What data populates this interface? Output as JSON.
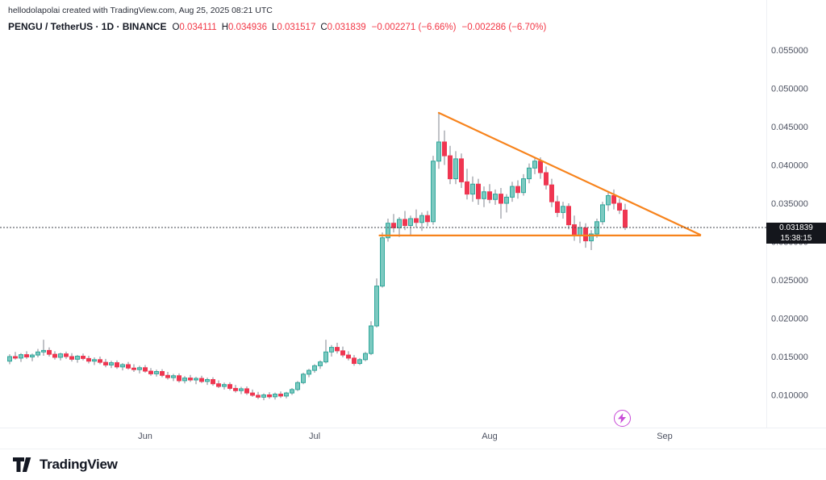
{
  "attribution": "hellodolapolai created with TradingView.com, Aug 25, 2025 08:21 UTC",
  "header": {
    "title": "PENGU / TetherUS · 1D · BINANCE",
    "ohlc": {
      "o_label": "O",
      "o_value": "0.034111",
      "h_label": "H",
      "h_value": "0.034936",
      "l_label": "L",
      "l_value": "0.031517",
      "c_label": "C",
      "c_value": "0.031839"
    },
    "change1": "−0.002271 (−6.66%)",
    "change2": "−0.002286 (−6.70%)"
  },
  "price_scale": {
    "price_label": "0.031839",
    "countdown": "15:38:15"
  },
  "marker": {
    "name": "lightning",
    "color": "#c84bd8"
  },
  "footer": {
    "brand": "TradingView"
  },
  "chart_data": {
    "type": "candlestick",
    "title": "PENGU / TetherUS 1D BINANCE",
    "interval": "1D",
    "current_price": 0.031839,
    "colors": {
      "up": "#7cc9c0",
      "up_border": "#2fa79b",
      "down": "#ef3651",
      "wick": "#82858f",
      "trendline": "#f7831c",
      "price_line": "#42464e"
    },
    "y_axis": {
      "min": 0.01,
      "max": 0.055,
      "labels": [
        "0.055000",
        "0.050000",
        "0.045000",
        "0.040000",
        "0.035000",
        "0.030000",
        "0.025000",
        "0.020000",
        "0.015000",
        "0.010000"
      ]
    },
    "x_axis": {
      "ticks": [
        {
          "label": "Jun",
          "index": 24
        },
        {
          "label": "Jul",
          "index": 54
        },
        {
          "label": "Aug",
          "index": 85
        },
        {
          "label": "Sep",
          "index": 116
        }
      ]
    },
    "drawings": [
      {
        "type": "trendline",
        "x1_index": 76,
        "price1": 0.0468,
        "x2_index": 122.3,
        "price2": 0.0309
      },
      {
        "type": "trendline",
        "x1_index": 65.5,
        "price1": 0.0308,
        "x2_index": 122.3,
        "price2": 0.0308
      }
    ],
    "candles": [
      [
        0.0144,
        0.0153,
        0.014,
        0.015
      ],
      [
        0.015,
        0.0156,
        0.0146,
        0.0148
      ],
      [
        0.0148,
        0.01545,
        0.0143,
        0.01525
      ],
      [
        0.01525,
        0.0157,
        0.0147,
        0.01495
      ],
      [
        0.01495,
        0.0154,
        0.0144,
        0.0152
      ],
      [
        0.0152,
        0.016,
        0.0149,
        0.0156
      ],
      [
        0.0156,
        0.0172,
        0.0151,
        0.0158
      ],
      [
        0.0158,
        0.0162,
        0.015,
        0.0153
      ],
      [
        0.0153,
        0.0157,
        0.0146,
        0.0149
      ],
      [
        0.0149,
        0.0155,
        0.0145,
        0.01535
      ],
      [
        0.01535,
        0.01565,
        0.0147,
        0.015
      ],
      [
        0.015,
        0.01545,
        0.01435,
        0.01465
      ],
      [
        0.01465,
        0.0152,
        0.0142,
        0.01505
      ],
      [
        0.01505,
        0.0154,
        0.0145,
        0.01475
      ],
      [
        0.01475,
        0.0151,
        0.0141,
        0.0144
      ],
      [
        0.0144,
        0.0149,
        0.0139,
        0.0146
      ],
      [
        0.0146,
        0.015,
        0.014,
        0.01425
      ],
      [
        0.01425,
        0.0147,
        0.0136,
        0.0139
      ],
      [
        0.0139,
        0.01445,
        0.0135,
        0.0142
      ],
      [
        0.0142,
        0.0145,
        0.0134,
        0.01365
      ],
      [
        0.01365,
        0.01415,
        0.0132,
        0.01395
      ],
      [
        0.01395,
        0.0143,
        0.0133,
        0.0135
      ],
      [
        0.0135,
        0.014,
        0.013,
        0.0133
      ],
      [
        0.0133,
        0.0138,
        0.0128,
        0.01355
      ],
      [
        0.01355,
        0.0139,
        0.0129,
        0.0131
      ],
      [
        0.0131,
        0.0135,
        0.0125,
        0.01275
      ],
      [
        0.01275,
        0.0133,
        0.0124,
        0.01305
      ],
      [
        0.01305,
        0.01335,
        0.0123,
        0.01255
      ],
      [
        0.01255,
        0.013,
        0.012,
        0.01225
      ],
      [
        0.01225,
        0.01275,
        0.0118,
        0.0125
      ],
      [
        0.0125,
        0.0128,
        0.0116,
        0.01185
      ],
      [
        0.01185,
        0.01245,
        0.0115,
        0.0122
      ],
      [
        0.0122,
        0.0126,
        0.0117,
        0.01195
      ],
      [
        0.01195,
        0.01235,
        0.0114,
        0.01215
      ],
      [
        0.01215,
        0.0125,
        0.01155,
        0.01175
      ],
      [
        0.01175,
        0.01225,
        0.0113,
        0.012
      ],
      [
        0.012,
        0.0123,
        0.0112,
        0.01145
      ],
      [
        0.01145,
        0.0119,
        0.0109,
        0.0111
      ],
      [
        0.0111,
        0.0116,
        0.0107,
        0.01135
      ],
      [
        0.01135,
        0.01165,
        0.0106,
        0.01085
      ],
      [
        0.01085,
        0.0113,
        0.0103,
        0.01055
      ],
      [
        0.01055,
        0.01105,
        0.0101,
        0.0108
      ],
      [
        0.0108,
        0.0111,
        0.01,
        0.01025
      ],
      [
        0.01025,
        0.0107,
        0.00975,
        0.00995
      ],
      [
        0.00995,
        0.0104,
        0.00945,
        0.0097
      ],
      [
        0.0097,
        0.0102,
        0.0093,
        0.01
      ],
      [
        0.01,
        0.01035,
        0.0095,
        0.00975
      ],
      [
        0.00975,
        0.0103,
        0.0094,
        0.0101
      ],
      [
        0.0101,
        0.01045,
        0.0096,
        0.00985
      ],
      [
        0.00985,
        0.0104,
        0.00955,
        0.01025
      ],
      [
        0.01025,
        0.0109,
        0.01,
        0.0107
      ],
      [
        0.0107,
        0.0118,
        0.0105,
        0.0116
      ],
      [
        0.0116,
        0.0129,
        0.0114,
        0.0127
      ],
      [
        0.0127,
        0.0134,
        0.0123,
        0.0132
      ],
      [
        0.0132,
        0.014,
        0.0129,
        0.0138
      ],
      [
        0.0138,
        0.0145,
        0.0134,
        0.0143
      ],
      [
        0.0143,
        0.0172,
        0.0141,
        0.0156
      ],
      [
        0.0156,
        0.0165,
        0.015,
        0.0162
      ],
      [
        0.0162,
        0.0168,
        0.0154,
        0.01575
      ],
      [
        0.01575,
        0.0163,
        0.0149,
        0.0152
      ],
      [
        0.0152,
        0.0157,
        0.0145,
        0.0148
      ],
      [
        0.0148,
        0.0152,
        0.0138,
        0.0141
      ],
      [
        0.0141,
        0.0148,
        0.0139,
        0.0146
      ],
      [
        0.0146,
        0.0156,
        0.0144,
        0.0154
      ],
      [
        0.0154,
        0.0196,
        0.0152,
        0.019
      ],
      [
        0.019,
        0.0252,
        0.0188,
        0.0242
      ],
      [
        0.0242,
        0.0312,
        0.024,
        0.0305
      ],
      [
        0.0305,
        0.033,
        0.03,
        0.0324
      ],
      [
        0.0324,
        0.0336,
        0.0312,
        0.0318
      ],
      [
        0.0318,
        0.0332,
        0.0306,
        0.0329
      ],
      [
        0.0329,
        0.034,
        0.0315,
        0.0321
      ],
      [
        0.0321,
        0.0334,
        0.0308,
        0.033
      ],
      [
        0.033,
        0.0342,
        0.0318,
        0.0325
      ],
      [
        0.0325,
        0.0338,
        0.0314,
        0.0334
      ],
      [
        0.0334,
        0.034,
        0.032,
        0.0326
      ],
      [
        0.0326,
        0.0412,
        0.0322,
        0.0405
      ],
      [
        0.0405,
        0.0468,
        0.0395,
        0.043
      ],
      [
        0.043,
        0.0445,
        0.04,
        0.0412
      ],
      [
        0.0412,
        0.0425,
        0.0375,
        0.0382
      ],
      [
        0.0382,
        0.0418,
        0.0375,
        0.0408
      ],
      [
        0.0408,
        0.0415,
        0.037,
        0.0378
      ],
      [
        0.0378,
        0.0395,
        0.0355,
        0.0362
      ],
      [
        0.0362,
        0.0385,
        0.0352,
        0.0375
      ],
      [
        0.0375,
        0.0382,
        0.0348,
        0.0356
      ],
      [
        0.0356,
        0.0372,
        0.0345,
        0.0365
      ],
      [
        0.0365,
        0.0375,
        0.035,
        0.0355
      ],
      [
        0.0355,
        0.0368,
        0.0348,
        0.0362
      ],
      [
        0.0362,
        0.037,
        0.033,
        0.035
      ],
      [
        0.035,
        0.0362,
        0.0338,
        0.0358
      ],
      [
        0.0358,
        0.0378,
        0.0352,
        0.0372
      ],
      [
        0.0372,
        0.038,
        0.0356,
        0.0364
      ],
      [
        0.0364,
        0.0388,
        0.036,
        0.0382
      ],
      [
        0.0382,
        0.0402,
        0.0376,
        0.0396
      ],
      [
        0.0396,
        0.0409,
        0.0388,
        0.0405
      ],
      [
        0.0405,
        0.041,
        0.0382,
        0.039
      ],
      [
        0.039,
        0.0398,
        0.0368,
        0.0374
      ],
      [
        0.0374,
        0.0382,
        0.0345,
        0.0352
      ],
      [
        0.0352,
        0.036,
        0.0332,
        0.0338
      ],
      [
        0.0338,
        0.0352,
        0.033,
        0.0346
      ],
      [
        0.0346,
        0.035,
        0.0316,
        0.0322
      ],
      [
        0.0322,
        0.0334,
        0.0301,
        0.0308
      ],
      [
        0.0308,
        0.0326,
        0.0298,
        0.0318
      ],
      [
        0.0318,
        0.0324,
        0.0292,
        0.0301
      ],
      [
        0.0301,
        0.0315,
        0.0289,
        0.031
      ],
      [
        0.031,
        0.033,
        0.0305,
        0.0326
      ],
      [
        0.0326,
        0.0352,
        0.0322,
        0.0348
      ],
      [
        0.0348,
        0.0366,
        0.034,
        0.036
      ],
      [
        0.036,
        0.0368,
        0.0342,
        0.035
      ],
      [
        0.035,
        0.0356,
        0.0336,
        0.0341
      ],
      [
        0.034111,
        0.034936,
        0.031517,
        0.031839
      ]
    ]
  }
}
